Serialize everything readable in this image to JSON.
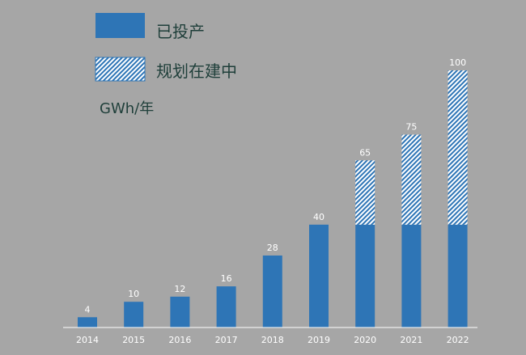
{
  "colors": {
    "background": "#a6a6a6",
    "operating": "#2e75b6",
    "hatch_light": "#ffffff",
    "hatch_dark": "#2e75b6",
    "axis": "#ffffff",
    "legend_text": "#1f3f3a",
    "label_text": "#ffffff"
  },
  "chart_data": {
    "type": "bar",
    "stacked": true,
    "categories": [
      "2014",
      "2015",
      "2016",
      "2017",
      "2018",
      "2019",
      "2020",
      "2021",
      "2022"
    ],
    "series": [
      {
        "name": "已投产",
        "values": [
          4,
          10,
          12,
          16,
          28,
          40,
          40,
          40,
          40
        ],
        "pattern": "solid"
      },
      {
        "name": "规划在建中",
        "values": [
          0,
          0,
          0,
          0,
          0,
          0,
          25,
          35,
          60
        ],
        "pattern": "hatched"
      }
    ],
    "totals": [
      "4",
      "10",
      "12",
      "16",
      "28",
      "40",
      "65",
      "75",
      "100"
    ],
    "unit": "GWh/年",
    "ylim": [
      0,
      100
    ],
    "grid": false,
    "legend": "top-left"
  }
}
